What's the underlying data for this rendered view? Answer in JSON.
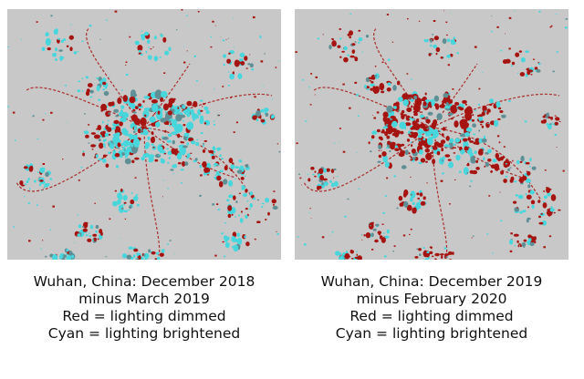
{
  "colors": {
    "background": "#c8c8c8",
    "dimmed": "#a51410",
    "brightened": "#47d6dc",
    "midtone": "#5f8f95"
  },
  "panels": [
    {
      "caption": [
        "Wuhan, China: December 2018",
        "minus March 2019",
        "Red = lighting dimmed",
        "Cyan = lighting brightened"
      ],
      "dominant": "brightened"
    },
    {
      "caption": [
        "Wuhan, China: December 2019",
        "minus February 2020",
        "Red = lighting dimmed",
        "Cyan = lighting brightened"
      ],
      "dominant": "dimmed"
    }
  ]
}
